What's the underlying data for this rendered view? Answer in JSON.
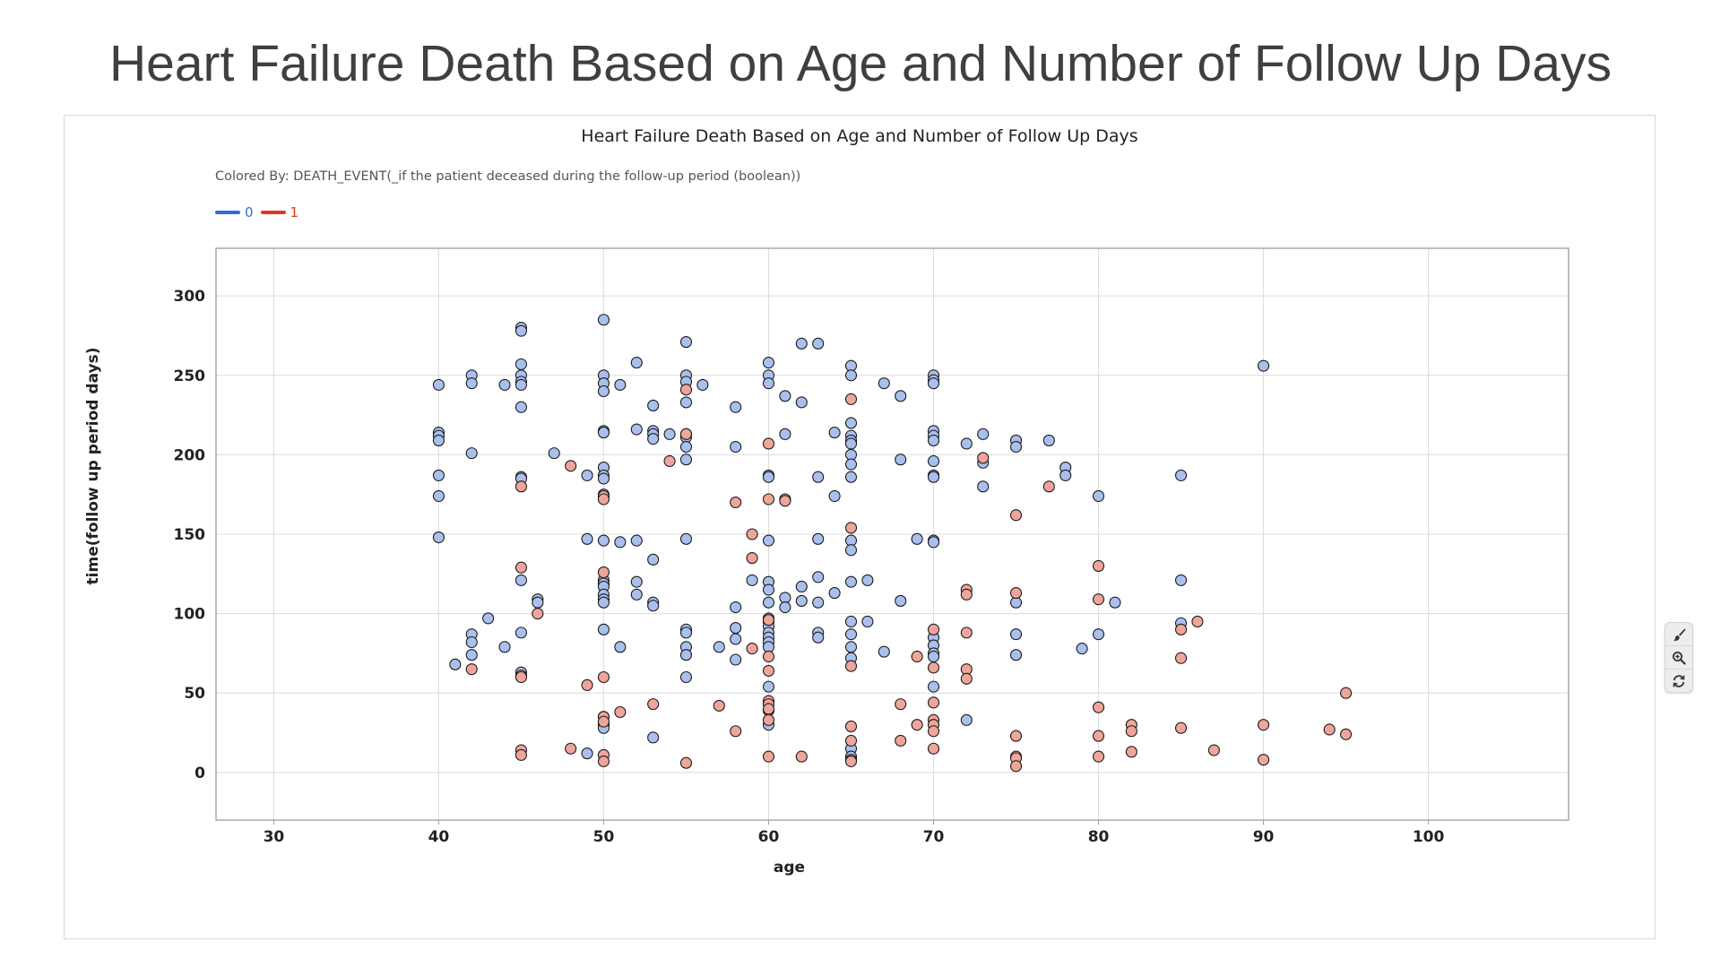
{
  "slide_title": "Heart Failure Death Based on Age and Number of Follow Up Days",
  "legend_header": "Colored By: DEATH_EVENT(_if the patient deceased during the follow-up period (boolean))",
  "toolbar": {
    "icons": [
      "brush-icon",
      "zoom-in-icon",
      "refresh-icon"
    ]
  },
  "chart_data": {
    "type": "scatter",
    "title": "Heart Failure Death Based on Age and Number of Follow Up Days",
    "xlabel": "age",
    "ylabel": "time(follow up period days)",
    "xlim": [
      26.5,
      108.5
    ],
    "ylim": [
      -30,
      330
    ],
    "xticks": [
      30,
      40,
      50,
      60,
      70,
      80,
      90,
      100
    ],
    "yticks": [
      0,
      50,
      100,
      150,
      200,
      250,
      300
    ],
    "grid": true,
    "legend_position": "top-left",
    "series": [
      {
        "name": "0",
        "color": "#2e6bd9",
        "fill": "#a9c0ee",
        "points": [
          [
            40,
            244
          ],
          [
            40,
            214
          ],
          [
            40,
            212
          ],
          [
            40,
            209
          ],
          [
            40,
            187
          ],
          [
            40,
            174
          ],
          [
            40,
            148
          ],
          [
            41,
            68
          ],
          [
            42,
            250
          ],
          [
            42,
            245
          ],
          [
            42,
            201
          ],
          [
            42,
            87
          ],
          [
            42,
            82
          ],
          [
            42,
            74
          ],
          [
            43,
            97
          ],
          [
            44,
            244
          ],
          [
            44,
            79
          ],
          [
            45,
            280
          ],
          [
            45,
            278
          ],
          [
            45,
            257
          ],
          [
            45,
            250
          ],
          [
            45,
            246
          ],
          [
            45,
            244
          ],
          [
            45,
            230
          ],
          [
            45,
            186
          ],
          [
            45,
            185
          ],
          [
            45,
            121
          ],
          [
            45,
            88
          ],
          [
            45,
            63
          ],
          [
            46,
            109
          ],
          [
            46,
            107
          ],
          [
            47,
            201
          ],
          [
            49,
            187
          ],
          [
            49,
            147
          ],
          [
            49,
            12
          ],
          [
            50,
            285
          ],
          [
            50,
            250
          ],
          [
            50,
            245
          ],
          [
            50,
            240
          ],
          [
            50,
            215
          ],
          [
            50,
            214
          ],
          [
            50,
            192
          ],
          [
            50,
            187
          ],
          [
            50,
            185
          ],
          [
            50,
            175
          ],
          [
            50,
            146
          ],
          [
            50,
            121
          ],
          [
            50,
            119
          ],
          [
            50,
            117
          ],
          [
            50,
            112
          ],
          [
            50,
            109
          ],
          [
            50,
            107
          ],
          [
            50,
            90
          ],
          [
            50,
            35
          ],
          [
            50,
            30
          ],
          [
            50,
            28
          ],
          [
            51,
            244
          ],
          [
            51,
            145
          ],
          [
            51,
            79
          ],
          [
            52,
            258
          ],
          [
            52,
            216
          ],
          [
            52,
            146
          ],
          [
            52,
            120
          ],
          [
            52,
            112
          ],
          [
            53,
            231
          ],
          [
            53,
            215
          ],
          [
            53,
            213
          ],
          [
            53,
            210
          ],
          [
            53,
            134
          ],
          [
            53,
            107
          ],
          [
            53,
            105
          ],
          [
            53,
            22
          ],
          [
            54,
            213
          ],
          [
            55,
            271
          ],
          [
            55,
            250
          ],
          [
            55,
            246
          ],
          [
            55,
            233
          ],
          [
            55,
            213
          ],
          [
            55,
            211
          ],
          [
            55,
            205
          ],
          [
            55,
            197
          ],
          [
            55,
            147
          ],
          [
            55,
            90
          ],
          [
            55,
            88
          ],
          [
            55,
            79
          ],
          [
            55,
            74
          ],
          [
            55,
            60
          ],
          [
            56,
            244
          ],
          [
            57,
            79
          ],
          [
            58,
            230
          ],
          [
            58,
            205
          ],
          [
            58,
            104
          ],
          [
            58,
            91
          ],
          [
            58,
            84
          ],
          [
            58,
            71
          ],
          [
            59,
            121
          ],
          [
            60,
            258
          ],
          [
            60,
            250
          ],
          [
            60,
            245
          ],
          [
            60,
            187
          ],
          [
            60,
            186
          ],
          [
            60,
            146
          ],
          [
            60,
            120
          ],
          [
            60,
            115
          ],
          [
            60,
            107
          ],
          [
            60,
            97
          ],
          [
            60,
            95
          ],
          [
            60,
            92
          ],
          [
            60,
            88
          ],
          [
            60,
            85
          ],
          [
            60,
            82
          ],
          [
            60,
            79
          ],
          [
            60,
            54
          ],
          [
            60,
            39
          ],
          [
            60,
            30
          ],
          [
            61,
            237
          ],
          [
            61,
            213
          ],
          [
            61,
            172
          ],
          [
            61,
            110
          ],
          [
            61,
            104
          ],
          [
            62,
            270
          ],
          [
            62,
            233
          ],
          [
            62,
            117
          ],
          [
            62,
            108
          ],
          [
            63,
            270
          ],
          [
            63,
            186
          ],
          [
            63,
            147
          ],
          [
            63,
            123
          ],
          [
            63,
            107
          ],
          [
            63,
            88
          ],
          [
            63,
            85
          ],
          [
            64,
            214
          ],
          [
            64,
            174
          ],
          [
            64,
            113
          ],
          [
            65,
            256
          ],
          [
            65,
            250
          ],
          [
            65,
            220
          ],
          [
            65,
            212
          ],
          [
            65,
            209
          ],
          [
            65,
            207
          ],
          [
            65,
            200
          ],
          [
            65,
            194
          ],
          [
            65,
            186
          ],
          [
            65,
            146
          ],
          [
            65,
            140
          ],
          [
            65,
            120
          ],
          [
            65,
            95
          ],
          [
            65,
            87
          ],
          [
            65,
            79
          ],
          [
            65,
            72
          ],
          [
            65,
            15
          ],
          [
            65,
            10
          ],
          [
            66,
            121
          ],
          [
            66,
            95
          ],
          [
            67,
            245
          ],
          [
            67,
            76
          ],
          [
            68,
            237
          ],
          [
            68,
            197
          ],
          [
            68,
            108
          ],
          [
            69,
            147
          ],
          [
            70,
            250
          ],
          [
            70,
            247
          ],
          [
            70,
            245
          ],
          [
            70,
            215
          ],
          [
            70,
            212
          ],
          [
            70,
            209
          ],
          [
            70,
            196
          ],
          [
            70,
            187
          ],
          [
            70,
            186
          ],
          [
            70,
            146
          ],
          [
            70,
            145
          ],
          [
            70,
            85
          ],
          [
            70,
            80
          ],
          [
            70,
            75
          ],
          [
            70,
            73
          ],
          [
            70,
            54
          ],
          [
            72,
            207
          ],
          [
            72,
            33
          ],
          [
            73,
            213
          ],
          [
            73,
            195
          ],
          [
            73,
            180
          ],
          [
            75,
            209
          ],
          [
            75,
            205
          ],
          [
            75,
            107
          ],
          [
            75,
            87
          ],
          [
            75,
            74
          ],
          [
            77,
            209
          ],
          [
            78,
            192
          ],
          [
            78,
            187
          ],
          [
            79,
            78
          ],
          [
            80,
            174
          ],
          [
            80,
            87
          ],
          [
            81,
            107
          ],
          [
            85,
            187
          ],
          [
            85,
            121
          ],
          [
            85,
            94
          ],
          [
            90,
            256
          ]
        ]
      },
      {
        "name": "1",
        "color": "#e03a1e",
        "fill": "#efa599",
        "points": [
          [
            42,
            65
          ],
          [
            45,
            180
          ],
          [
            45,
            129
          ],
          [
            45,
            61
          ],
          [
            45,
            60
          ],
          [
            45,
            14
          ],
          [
            45,
            11
          ],
          [
            46,
            100
          ],
          [
            48,
            193
          ],
          [
            48,
            15
          ],
          [
            49,
            55
          ],
          [
            50,
            174
          ],
          [
            50,
            172
          ],
          [
            50,
            126
          ],
          [
            50,
            60
          ],
          [
            50,
            35
          ],
          [
            50,
            32
          ],
          [
            50,
            11
          ],
          [
            50,
            7
          ],
          [
            51,
            38
          ],
          [
            53,
            43
          ],
          [
            54,
            196
          ],
          [
            55,
            241
          ],
          [
            55,
            213
          ],
          [
            55,
            6
          ],
          [
            57,
            42
          ],
          [
            58,
            170
          ],
          [
            58,
            26
          ],
          [
            59,
            150
          ],
          [
            59,
            135
          ],
          [
            59,
            78
          ],
          [
            60,
            207
          ],
          [
            60,
            172
          ],
          [
            60,
            96
          ],
          [
            60,
            73
          ],
          [
            60,
            64
          ],
          [
            60,
            45
          ],
          [
            60,
            43
          ],
          [
            60,
            40
          ],
          [
            60,
            33
          ],
          [
            60,
            10
          ],
          [
            61,
            171
          ],
          [
            62,
            10
          ],
          [
            65,
            235
          ],
          [
            65,
            154
          ],
          [
            65,
            67
          ],
          [
            65,
            29
          ],
          [
            65,
            20
          ],
          [
            65,
            8
          ],
          [
            65,
            7
          ],
          [
            68,
            43
          ],
          [
            68,
            20
          ],
          [
            69,
            73
          ],
          [
            69,
            30
          ],
          [
            70,
            90
          ],
          [
            70,
            66
          ],
          [
            70,
            44
          ],
          [
            70,
            33
          ],
          [
            70,
            30
          ],
          [
            70,
            26
          ],
          [
            70,
            15
          ],
          [
            72,
            115
          ],
          [
            72,
            112
          ],
          [
            72,
            88
          ],
          [
            72,
            65
          ],
          [
            72,
            59
          ],
          [
            73,
            198
          ],
          [
            75,
            162
          ],
          [
            75,
            113
          ],
          [
            75,
            23
          ],
          [
            75,
            10
          ],
          [
            75,
            9
          ],
          [
            75,
            4
          ],
          [
            77,
            180
          ],
          [
            80,
            130
          ],
          [
            80,
            109
          ],
          [
            80,
            41
          ],
          [
            80,
            23
          ],
          [
            80,
            10
          ],
          [
            82,
            30
          ],
          [
            82,
            26
          ],
          [
            82,
            13
          ],
          [
            85,
            90
          ],
          [
            85,
            72
          ],
          [
            85,
            28
          ],
          [
            86,
            95
          ],
          [
            87,
            14
          ],
          [
            90,
            30
          ],
          [
            90,
            8
          ],
          [
            94,
            27
          ],
          [
            95,
            50
          ],
          [
            95,
            24
          ]
        ]
      }
    ]
  }
}
